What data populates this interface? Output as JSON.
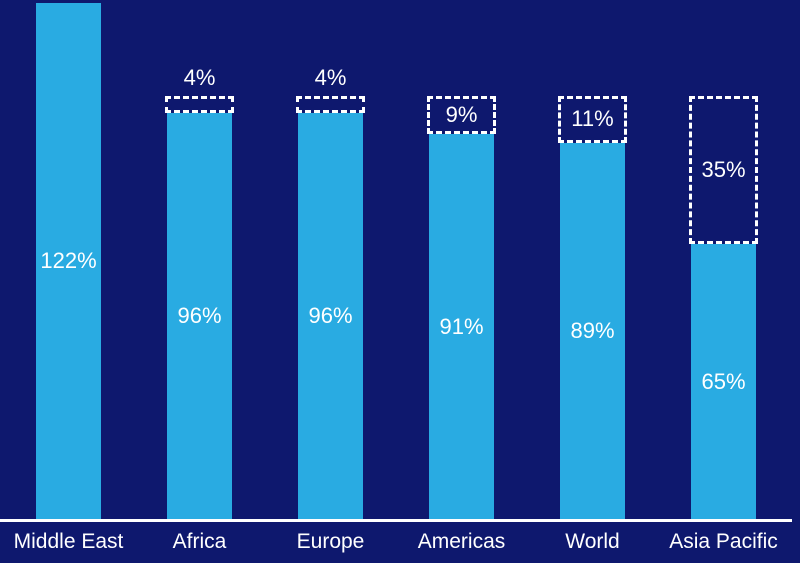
{
  "page": {
    "background": "#0e186e",
    "axis_color": "#ffffff",
    "text_color": "#ffffff"
  },
  "chart_data": {
    "type": "bar",
    "title": "",
    "xlabel": "",
    "ylabel": "",
    "unit": "%",
    "ylim": [
      0,
      122
    ],
    "grid": false,
    "legend": "none",
    "categories": [
      "Middle East",
      "Africa",
      "Europe",
      "Americas",
      "World",
      "Asia Pacific"
    ],
    "series": [
      {
        "name": "solid-bar",
        "values": [
          122,
          96,
          96,
          91,
          89,
          65
        ]
      },
      {
        "name": "dashed-gap-to-100",
        "values": [
          0,
          4,
          4,
          9,
          11,
          35
        ]
      }
    ],
    "value_labels": [
      "122%",
      "96%",
      "96%",
      "91%",
      "89%",
      "65%"
    ],
    "gap_labels": [
      "",
      "4%",
      "4%",
      "9%",
      "11%",
      "35%"
    ],
    "gap_label_position": [
      "none",
      "above",
      "above",
      "inside",
      "inside",
      "inside"
    ],
    "bar_color": "#29abe2"
  }
}
